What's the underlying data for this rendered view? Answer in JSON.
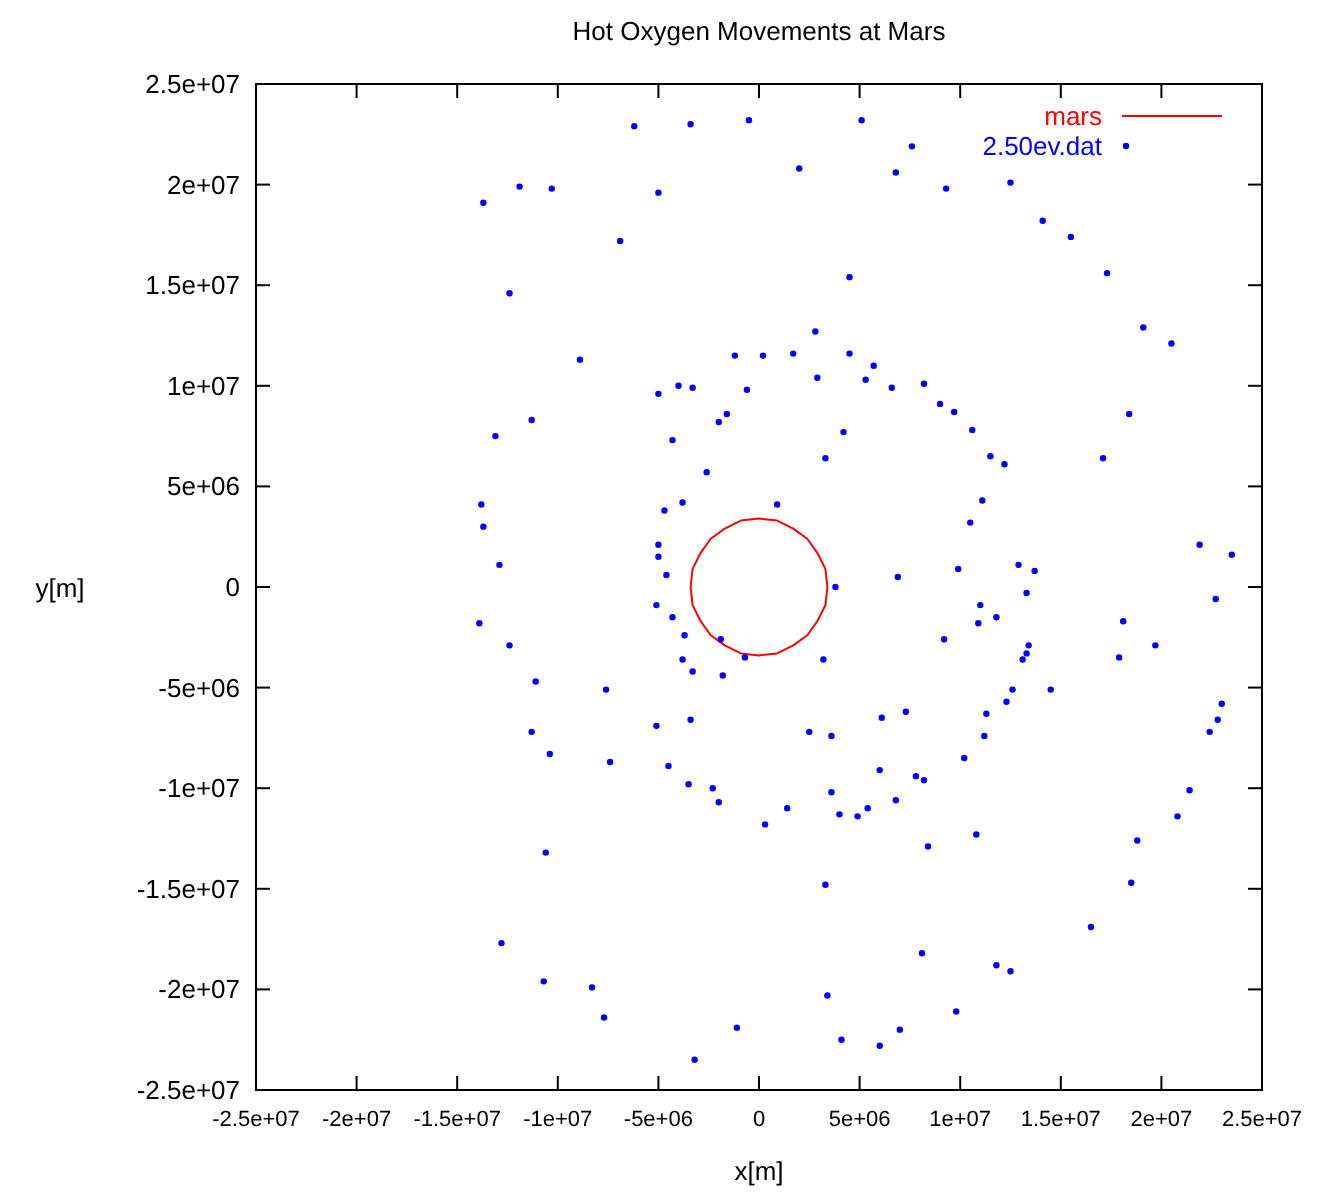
{
  "chart_data": {
    "type": "line",
    "title": "Hot Oxygen Movements at Mars",
    "xlabel": "x[m]",
    "ylabel": "y[m]",
    "xlim": [
      -25000000.0,
      25000000.0
    ],
    "ylim": [
      -25000000.0,
      25000000.0
    ],
    "xticks": [
      {
        "value": -25000000.0,
        "label": "-2.5e+07"
      },
      {
        "value": -20000000.0,
        "label": "-2e+07"
      },
      {
        "value": -15000000.0,
        "label": "-1.5e+07"
      },
      {
        "value": -10000000.0,
        "label": "-1e+07"
      },
      {
        "value": -5000000.0,
        "label": "-5e+06"
      },
      0,
      {
        "value": 5000000.0,
        "label": "5e+06"
      },
      {
        "value": 10000000.0,
        "label": "1e+07"
      },
      {
        "value": 15000000.0,
        "label": "1.5e+07"
      },
      {
        "value": 20000000.0,
        "label": "2e+07"
      },
      {
        "value": 25000000.0,
        "label": "2.5e+07"
      }
    ],
    "yticks": [
      {
        "value": -25000000.0,
        "label": "-2.5e+07"
      },
      {
        "value": -20000000.0,
        "label": "-2e+07"
      },
      {
        "value": -15000000.0,
        "label": "-1.5e+07"
      },
      {
        "value": -10000000.0,
        "label": "-1e+07"
      },
      {
        "value": -5000000.0,
        "label": "-5e+06"
      },
      0,
      {
        "value": 5000000.0,
        "label": "5e+06"
      },
      {
        "value": 10000000.0,
        "label": "1e+07"
      },
      {
        "value": 15000000.0,
        "label": "1.5e+07"
      },
      {
        "value": 20000000.0,
        "label": "2e+07"
      },
      {
        "value": 25000000.0,
        "label": "2.5e+07"
      }
    ],
    "grid": false,
    "legend": "top right",
    "series": [
      {
        "name": "mars",
        "color": "#ff0000",
        "line_style": "solid",
        "x": [
          3400000.0,
          3300000.0,
          2900000.0,
          2400000.0,
          1700000.0,
          900000.0,
          0,
          -900000.0,
          -1700000.0,
          -2400000.0,
          -2900000.0,
          -3300000.0,
          -3400000.0,
          null,
          -3400000.0,
          -3300000.0,
          -2900000.0,
          -2400000.0,
          -1700000.0,
          -900000.0,
          0,
          900000.0,
          1700000.0,
          2400000.0,
          2900000.0,
          3300000.0,
          3400000.0
        ],
        "values": [
          0,
          900000.0,
          1700000.0,
          2400000.0,
          2900000.0,
          3300000.0,
          3400000.0,
          3300000.0,
          2900000.0,
          2400000.0,
          1700000.0,
          900000.0,
          0,
          null,
          0,
          -900000.0,
          -1700000.0,
          -2400000.0,
          -2900000.0,
          -3300000.0,
          -3400000.0,
          -3300000.0,
          -2900000.0,
          -2400000.0,
          -1700000.0,
          -900000.0,
          0
        ]
      },
      {
        "name": "2.50ev.dat",
        "type": "scatter",
        "color": "#0000ff",
        "x": [
          3800000.0,
          -13700000.0,
          -11900000.0,
          -12400000.0,
          -6200000.0,
          -3400000.0,
          -500000.0,
          2000000.0,
          5100000.0,
          7600000.0,
          6800000.0,
          12500000.0,
          14100000.0,
          15500000.0,
          17300000.0,
          19100000.0,
          20500000.0,
          18400000.0,
          17100000.0,
          21900000.0,
          23500000.0,
          -8900000.0,
          -6900000.0,
          2800000.0,
          4500000.0,
          -11300000.0,
          -13100000.0,
          -13800000.0,
          -13700000.0,
          -12900000.0,
          -10300000.0,
          -5000000.0,
          9300000.0,
          -2000000.0,
          -13900000.0,
          -12400000.0,
          -11100000.0,
          -11300000.0,
          -10400000.0,
          -7400000.0,
          -10600000.0,
          -12800000.0,
          -10700000.0,
          -7700000.0,
          -8300000.0,
          -3200000.0,
          -1100000.0,
          3300000.0,
          3400000.0,
          4100000.0,
          6000000.0,
          7000000.0,
          8100000.0,
          9800000.0,
          10800000.0,
          11800000.0,
          12500000.0,
          16500000.0,
          18500000.0,
          18800000.0,
          20800000.0,
          21400000.0,
          22400000.0,
          23000000.0,
          22800000.0,
          17900000.0,
          19700000.0,
          18100000.0,
          22700000.0,
          9900000.0,
          2500000.0,
          8400000.0,
          14500000.0,
          -7600000.0,
          -5100000.0,
          -5000000.0,
          -4000000.0,
          -4300000.0,
          -1200000.0,
          200000.0,
          1700000.0,
          2900000.0,
          4500000.0,
          5700000.0,
          5300000.0,
          8200000.0,
          9000000.0,
          9700000.0,
          10600000.0,
          11500000.0,
          12200000.0,
          11100000.0,
          10500000.0,
          12900000.0,
          13700000.0,
          -2600000.0,
          -1600000.0,
          3300000.0,
          4200000.0,
          -3800000.0,
          -4700000.0,
          -5000000.0,
          -5000000.0,
          -4600000.0,
          -3300000.0,
          -600000.0,
          6600000.0,
          900000.0,
          -5100000.0,
          -4300000.0,
          -3700000.0,
          -3800000.0,
          -3300000.0,
          -1800000.0,
          -3400000.0,
          -4500000.0,
          -3500000.0,
          -2000000.0,
          -2300000.0,
          300000.0,
          1400000.0,
          3600000.0,
          3600000.0,
          4000000.0,
          4900000.0,
          5400000.0,
          6000000.0,
          6800000.0,
          7300000.0,
          7800000.0,
          8200000.0,
          10200000.0,
          11200000.0,
          11300000.0,
          12300000.0,
          12600000.0,
          13100000.0,
          13400000.0,
          13300000.0,
          10900000.0,
          11800000.0,
          11000000.0,
          13300000.0,
          6900000.0,
          3200000.0,
          6100000.0,
          9200000.0,
          -1900000.0,
          -700000.0
        ],
        "values": [
          0,
          19100000.0,
          19900000.0,
          14600000.0,
          22900000.0,
          23000000.0,
          23200000.0,
          20800000.0,
          23200000.0,
          21900000.0,
          20600000.0,
          20100000.0,
          18200000.0,
          17400000.0,
          15600000.0,
          12900000.0,
          12100000.0,
          8600000.0,
          6400000.0,
          2100000.0,
          1600000.0,
          11300000.0,
          17200000.0,
          12700000.0,
          15400000.0,
          8300000.0,
          7500000.0,
          4100000.0,
          3000000.0,
          1100000.0,
          19800000.0,
          19600000.0,
          19800000.0,
          8200000.0,
          -1800000.0,
          -2900000.0,
          -4700000.0,
          -7200000.0,
          -8300000.0,
          -8700000.0,
          -13200000.0,
          -17700000.0,
          -19600000.0,
          -21400000.0,
          -19900000.0,
          -23500000.0,
          -21900000.0,
          -14800000.0,
          -20300000.0,
          -22500000.0,
          -22800000.0,
          -22000000.0,
          -18200000.0,
          -21100000.0,
          -12300000.0,
          -18800000.0,
          -19100000.0,
          -16900000.0,
          -14700000.0,
          -12600000.0,
          -11400000.0,
          -10100000.0,
          -7200000.0,
          -5800000.0,
          -6600000.0,
          -3500000.0,
          -2900000.0,
          -1700000.0,
          -600000.0,
          900000.0,
          -7200000.0,
          -12900000.0,
          -5100000.0,
          -5100000.0,
          -6900000.0,
          9600000.0,
          10000000.0,
          7300000.0,
          11500000.0,
          11500000.0,
          11600000.0,
          10400000.0,
          11600000.0,
          11000000.0,
          10300000.0,
          10100000.0,
          9100000.0,
          8700000.0,
          7800000.0,
          6500000.0,
          6100000.0,
          4300000.0,
          3200000.0,
          1100000.0,
          800000.0,
          5700000.0,
          8600000.0,
          6400000.0,
          7700000.0,
          4200000.0,
          3800000.0,
          2100000.0,
          1500000.0,
          600000.0,
          9900000.0,
          9800000.0,
          9900000.0,
          4100000.0,
          -900000.0,
          -1500000.0,
          -2400000.0,
          -3600000.0,
          -4200000.0,
          -4400000.0,
          -6600000.0,
          -8900000.0,
          -9800000.0,
          -10700000.0,
          -10000000.0,
          -11800000.0,
          -11000000.0,
          -7400000.0,
          -10200000.0,
          -11300000.0,
          -11400000.0,
          -11000000.0,
          -9100000.0,
          -10600000.0,
          -6200000.0,
          -9400000.0,
          -9600000.0,
          -8500000.0,
          -7400000.0,
          -6300000.0,
          -5700000.0,
          -5100000.0,
          -3600000.0,
          -2900000.0,
          -3300000.0,
          -1800000.0,
          -1500000.0,
          -900000.0,
          -300000.0,
          500000.0,
          -3600000.0,
          -6500000.0,
          -2600000.0,
          -2600000.0,
          -3500000.0
        ]
      }
    ]
  }
}
